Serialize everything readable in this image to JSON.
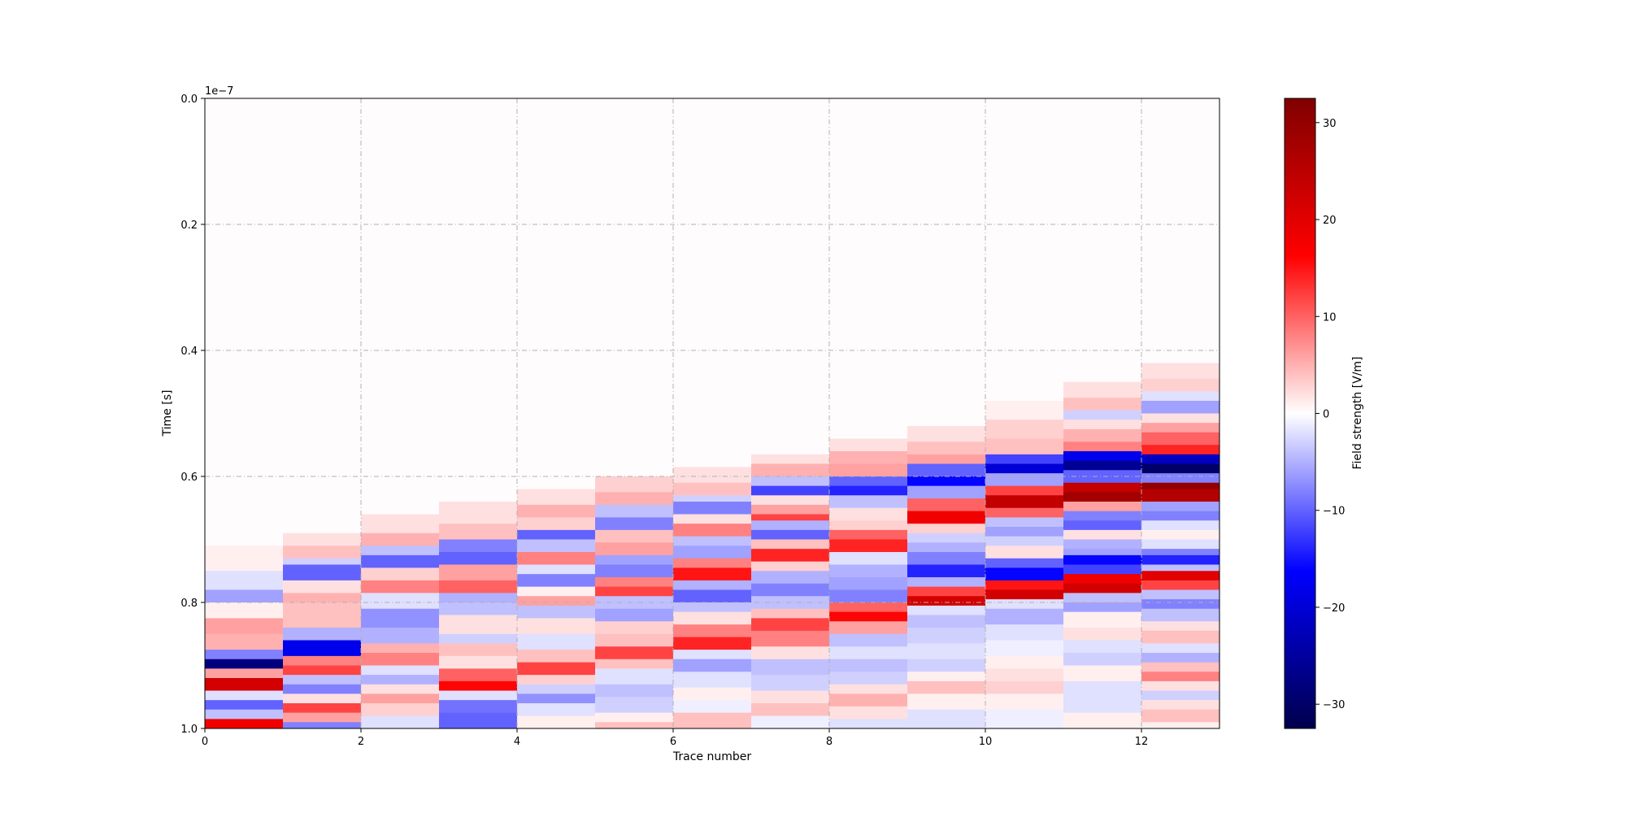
{
  "chart_data": {
    "type": "heatmap",
    "title": "",
    "xlabel": "Trace number",
    "ylabel": "Time [s]",
    "y_offset_label": "1e−7",
    "xlim": [
      0,
      13
    ],
    "ylim": [
      1.0,
      0.0
    ],
    "y_inverted": true,
    "x_ticks": [
      0,
      2,
      4,
      6,
      8,
      10,
      12
    ],
    "x_tick_labels": [
      "0",
      "2",
      "4",
      "6",
      "8",
      "10",
      "12"
    ],
    "y_ticks": [
      0.0,
      0.2,
      0.4,
      0.6,
      0.8,
      1.0
    ],
    "y_tick_labels": [
      "0.0",
      "0.2",
      "0.4",
      "0.6",
      "0.8",
      "1.0"
    ],
    "grid": true,
    "colormap": "seismic",
    "colorbar": {
      "label": "Field strength [V/m]",
      "range": [
        -32.5,
        32.5
      ],
      "ticks": [
        -30,
        -20,
        -10,
        0,
        10,
        20,
        30
      ],
      "tick_labels": [
        "−30",
        "−20",
        "−10",
        "0",
        "10",
        "20",
        "30"
      ]
    },
    "traces": [
      {
        "trace": 0,
        "bands": [
          [
            0.71,
            1
          ],
          [
            0.75,
            -2
          ],
          [
            0.78,
            -6
          ],
          [
            0.8,
            1
          ],
          [
            0.825,
            6
          ],
          [
            0.85,
            5
          ],
          [
            0.875,
            -8
          ],
          [
            0.89,
            -28
          ],
          [
            0.905,
            6
          ],
          [
            0.92,
            22
          ],
          [
            0.94,
            -2
          ],
          [
            0.955,
            -10
          ],
          [
            0.97,
            -4
          ],
          [
            0.985,
            18
          ]
        ]
      },
      {
        "trace": 1,
        "bands": [
          [
            0.69,
            2
          ],
          [
            0.71,
            4
          ],
          [
            0.73,
            -3
          ],
          [
            0.74,
            -10
          ],
          [
            0.765,
            2
          ],
          [
            0.785,
            5
          ],
          [
            0.8,
            4
          ],
          [
            0.84,
            -5
          ],
          [
            0.86,
            -18
          ],
          [
            0.885,
            8
          ],
          [
            0.9,
            12
          ],
          [
            0.915,
            -4
          ],
          [
            0.93,
            -8
          ],
          [
            0.945,
            2
          ],
          [
            0.96,
            12
          ],
          [
            0.975,
            6
          ],
          [
            0.99,
            -8
          ]
        ]
      },
      {
        "trace": 2,
        "bands": [
          [
            0.66,
            2
          ],
          [
            0.69,
            5
          ],
          [
            0.71,
            -4
          ],
          [
            0.725,
            -10
          ],
          [
            0.745,
            3
          ],
          [
            0.765,
            8
          ],
          [
            0.785,
            -2
          ],
          [
            0.81,
            -7
          ],
          [
            0.84,
            -5
          ],
          [
            0.865,
            5
          ],
          [
            0.88,
            8
          ],
          [
            0.9,
            -2
          ],
          [
            0.915,
            -5
          ],
          [
            0.93,
            2
          ],
          [
            0.945,
            6
          ],
          [
            0.96,
            3
          ],
          [
            0.98,
            -2
          ]
        ]
      },
      {
        "trace": 3,
        "bands": [
          [
            0.64,
            2
          ],
          [
            0.675,
            4
          ],
          [
            0.7,
            -8
          ],
          [
            0.72,
            -10
          ],
          [
            0.74,
            6
          ],
          [
            0.765,
            10
          ],
          [
            0.785,
            -5
          ],
          [
            0.8,
            -4
          ],
          [
            0.82,
            2
          ],
          [
            0.85,
            -3
          ],
          [
            0.865,
            4
          ],
          [
            0.885,
            2
          ],
          [
            0.905,
            10
          ],
          [
            0.925,
            16
          ],
          [
            0.94,
            -2
          ],
          [
            0.955,
            -9
          ],
          [
            0.975,
            -10
          ]
        ]
      },
      {
        "trace": 4,
        "bands": [
          [
            0.62,
            2
          ],
          [
            0.645,
            5
          ],
          [
            0.665,
            3
          ],
          [
            0.685,
            -10
          ],
          [
            0.7,
            -4
          ],
          [
            0.72,
            8
          ],
          [
            0.74,
            -2
          ],
          [
            0.755,
            -8
          ],
          [
            0.775,
            1
          ],
          [
            0.79,
            6
          ],
          [
            0.805,
            -4
          ],
          [
            0.825,
            2
          ],
          [
            0.85,
            -2
          ],
          [
            0.875,
            4
          ],
          [
            0.895,
            12
          ],
          [
            0.915,
            3
          ],
          [
            0.93,
            -3
          ],
          [
            0.945,
            -7
          ],
          [
            0.96,
            -2
          ],
          [
            0.98,
            1
          ]
        ]
      },
      {
        "trace": 5,
        "bands": [
          [
            0.6,
            3
          ],
          [
            0.625,
            5
          ],
          [
            0.645,
            -4
          ],
          [
            0.665,
            -8
          ],
          [
            0.685,
            4
          ],
          [
            0.705,
            6
          ],
          [
            0.725,
            -6
          ],
          [
            0.74,
            -8
          ],
          [
            0.76,
            8
          ],
          [
            0.775,
            12
          ],
          [
            0.79,
            -4
          ],
          [
            0.81,
            -6
          ],
          [
            0.83,
            3
          ],
          [
            0.85,
            4
          ],
          [
            0.87,
            12
          ],
          [
            0.89,
            4
          ],
          [
            0.905,
            -2
          ],
          [
            0.93,
            -4
          ],
          [
            0.95,
            -3
          ],
          [
            0.975,
            1
          ],
          [
            0.99,
            4
          ]
        ]
      },
      {
        "trace": 6,
        "bands": [
          [
            0.585,
            2
          ],
          [
            0.61,
            4
          ],
          [
            0.63,
            -3
          ],
          [
            0.64,
            -8
          ],
          [
            0.66,
            2
          ],
          [
            0.675,
            8
          ],
          [
            0.695,
            -4
          ],
          [
            0.71,
            -6
          ],
          [
            0.73,
            8
          ],
          [
            0.745,
            15
          ],
          [
            0.765,
            -5
          ],
          [
            0.78,
            -10
          ],
          [
            0.8,
            -4
          ],
          [
            0.815,
            2
          ],
          [
            0.835,
            8
          ],
          [
            0.855,
            14
          ],
          [
            0.875,
            -2
          ],
          [
            0.89,
            -6
          ],
          [
            0.91,
            -2
          ],
          [
            0.935,
            1
          ],
          [
            0.955,
            -1
          ],
          [
            0.975,
            4
          ]
        ]
      },
      {
        "trace": 7,
        "bands": [
          [
            0.565,
            2
          ],
          [
            0.58,
            5
          ],
          [
            0.6,
            -4
          ],
          [
            0.615,
            -12
          ],
          [
            0.63,
            2
          ],
          [
            0.645,
            6
          ],
          [
            0.66,
            12
          ],
          [
            0.67,
            -5
          ],
          [
            0.685,
            -10
          ],
          [
            0.7,
            4
          ],
          [
            0.715,
            14
          ],
          [
            0.735,
            3
          ],
          [
            0.75,
            -5
          ],
          [
            0.77,
            -8
          ],
          [
            0.79,
            -4
          ],
          [
            0.81,
            4
          ],
          [
            0.825,
            12
          ],
          [
            0.845,
            8
          ],
          [
            0.87,
            2
          ],
          [
            0.89,
            -4
          ],
          [
            0.915,
            -3
          ],
          [
            0.94,
            2
          ],
          [
            0.96,
            4
          ],
          [
            0.98,
            -1
          ]
        ]
      },
      {
        "trace": 8,
        "bands": [
          [
            0.54,
            2
          ],
          [
            0.56,
            5
          ],
          [
            0.58,
            6
          ],
          [
            0.6,
            -10
          ],
          [
            0.615,
            -14
          ],
          [
            0.63,
            -4
          ],
          [
            0.65,
            2
          ],
          [
            0.67,
            3
          ],
          [
            0.685,
            10
          ],
          [
            0.7,
            14
          ],
          [
            0.72,
            -2
          ],
          [
            0.74,
            -5
          ],
          [
            0.76,
            -6
          ],
          [
            0.78,
            -8
          ],
          [
            0.8,
            10
          ],
          [
            0.815,
            16
          ],
          [
            0.83,
            6
          ],
          [
            0.85,
            -4
          ],
          [
            0.87,
            -2
          ],
          [
            0.89,
            -4
          ],
          [
            0.91,
            -3
          ],
          [
            0.93,
            2
          ],
          [
            0.945,
            5
          ],
          [
            0.965,
            2
          ],
          [
            0.985,
            -2
          ]
        ]
      },
      {
        "trace": 9,
        "bands": [
          [
            0.52,
            2
          ],
          [
            0.545,
            4
          ],
          [
            0.565,
            6
          ],
          [
            0.58,
            -10
          ],
          [
            0.6,
            -16
          ],
          [
            0.615,
            -6
          ],
          [
            0.635,
            10
          ],
          [
            0.655,
            18
          ],
          [
            0.675,
            3
          ],
          [
            0.69,
            -3
          ],
          [
            0.705,
            -5
          ],
          [
            0.72,
            -8
          ],
          [
            0.74,
            -14
          ],
          [
            0.76,
            -5
          ],
          [
            0.775,
            12
          ],
          [
            0.79,
            22
          ],
          [
            0.805,
            -2
          ],
          [
            0.82,
            -4
          ],
          [
            0.84,
            -3
          ],
          [
            0.865,
            -2
          ],
          [
            0.89,
            -3
          ],
          [
            0.91,
            1
          ],
          [
            0.925,
            4
          ],
          [
            0.945,
            1
          ],
          [
            0.97,
            -2
          ]
        ]
      },
      {
        "trace": 10,
        "bands": [
          [
            0.48,
            1
          ],
          [
            0.51,
            3
          ],
          [
            0.54,
            4
          ],
          [
            0.565,
            -12
          ],
          [
            0.58,
            -20
          ],
          [
            0.595,
            -6
          ],
          [
            0.615,
            12
          ],
          [
            0.63,
            24
          ],
          [
            0.65,
            10
          ],
          [
            0.665,
            -4
          ],
          [
            0.68,
            -6
          ],
          [
            0.695,
            -3
          ],
          [
            0.71,
            2
          ],
          [
            0.73,
            -10
          ],
          [
            0.745,
            -16
          ],
          [
            0.765,
            15
          ],
          [
            0.78,
            22
          ],
          [
            0.795,
            -2
          ],
          [
            0.81,
            -5
          ],
          [
            0.835,
            -2
          ],
          [
            0.86,
            -1
          ],
          [
            0.885,
            1
          ],
          [
            0.905,
            2
          ],
          [
            0.925,
            3
          ],
          [
            0.945,
            1
          ],
          [
            0.97,
            -1
          ]
        ]
      },
      {
        "trace": 11,
        "bands": [
          [
            0.45,
            2
          ],
          [
            0.475,
            4
          ],
          [
            0.495,
            -3
          ],
          [
            0.51,
            2
          ],
          [
            0.525,
            5
          ],
          [
            0.545,
            8
          ],
          [
            0.56,
            -18
          ],
          [
            0.575,
            -26
          ],
          [
            0.59,
            -10
          ],
          [
            0.61,
            24
          ],
          [
            0.625,
            28
          ],
          [
            0.64,
            6
          ],
          [
            0.655,
            -8
          ],
          [
            0.67,
            -10
          ],
          [
            0.685,
            2
          ],
          [
            0.7,
            -5
          ],
          [
            0.715,
            -6
          ],
          [
            0.725,
            -16
          ],
          [
            0.74,
            -12
          ],
          [
            0.755,
            18
          ],
          [
            0.77,
            22
          ],
          [
            0.785,
            -4
          ],
          [
            0.8,
            -6
          ],
          [
            0.815,
            1
          ],
          [
            0.84,
            2
          ],
          [
            0.86,
            -2
          ],
          [
            0.88,
            -3
          ],
          [
            0.9,
            1
          ],
          [
            0.925,
            -2
          ],
          [
            0.95,
            -2
          ],
          [
            0.975,
            1
          ]
        ]
      },
      {
        "trace": 12,
        "bands": [
          [
            0.42,
            2
          ],
          [
            0.445,
            3
          ],
          [
            0.465,
            -2
          ],
          [
            0.48,
            -6
          ],
          [
            0.5,
            2
          ],
          [
            0.515,
            6
          ],
          [
            0.53,
            10
          ],
          [
            0.55,
            14
          ],
          [
            0.565,
            -22
          ],
          [
            0.58,
            -30
          ],
          [
            0.595,
            -8
          ],
          [
            0.61,
            30
          ],
          [
            0.62,
            26
          ],
          [
            0.64,
            -6
          ],
          [
            0.655,
            -8
          ],
          [
            0.67,
            -2
          ],
          [
            0.685,
            1
          ],
          [
            0.7,
            -2
          ],
          [
            0.715,
            -8
          ],
          [
            0.725,
            -14
          ],
          [
            0.74,
            -4
          ],
          [
            0.75,
            20
          ],
          [
            0.765,
            12
          ],
          [
            0.78,
            -4
          ],
          [
            0.795,
            -8
          ],
          [
            0.81,
            -4
          ],
          [
            0.83,
            2
          ],
          [
            0.845,
            4
          ],
          [
            0.865,
            -2
          ],
          [
            0.88,
            -5
          ],
          [
            0.895,
            4
          ],
          [
            0.91,
            8
          ],
          [
            0.925,
            2
          ],
          [
            0.94,
            -3
          ],
          [
            0.955,
            2
          ],
          [
            0.97,
            4
          ],
          [
            0.99,
            1
          ]
        ]
      }
    ]
  }
}
